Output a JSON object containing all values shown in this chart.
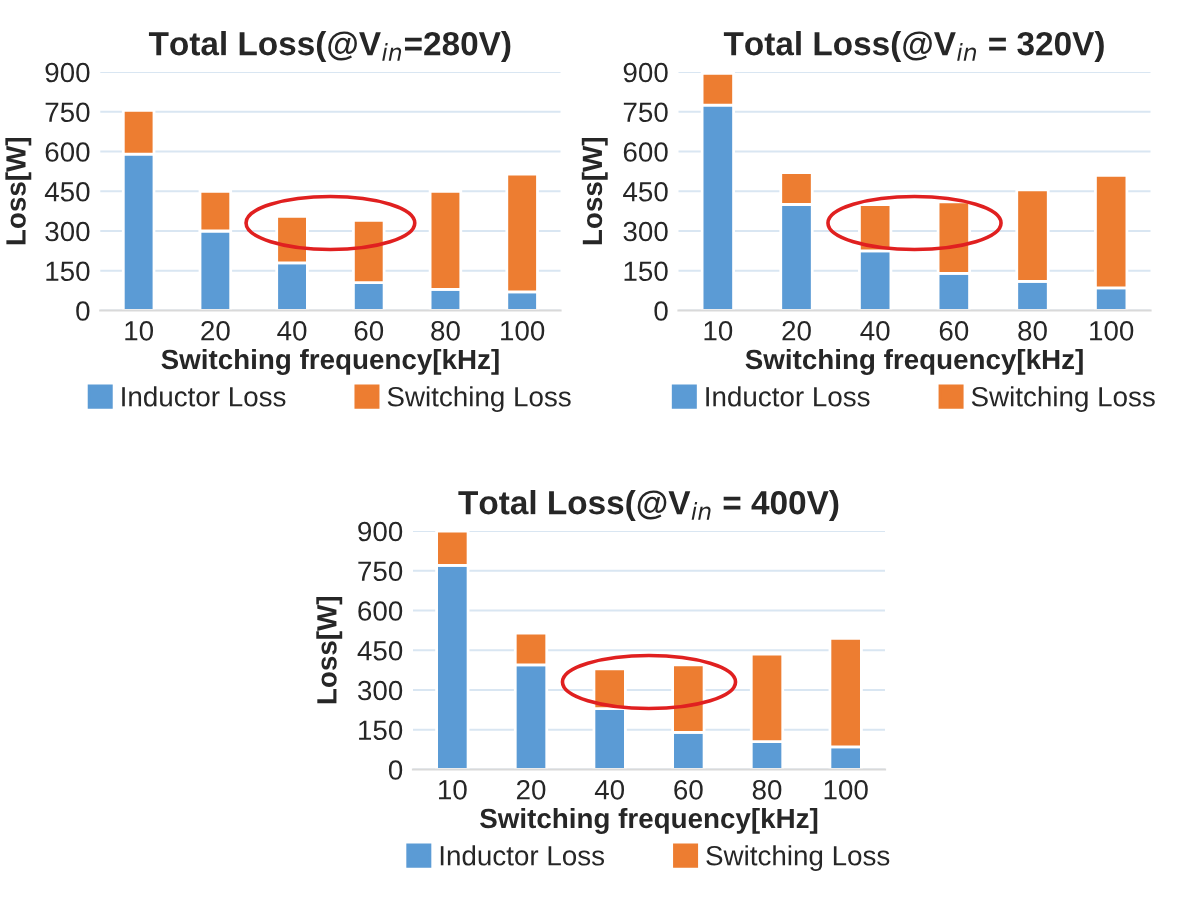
{
  "chart_data": [
    {
      "type": "bar",
      "title": "Total Loss(@V$_{in}$=280V)",
      "xlabel": "Switching frequency[kHz]",
      "ylabel": "Loss[W]",
      "categories": [
        "10",
        "20",
        "40",
        "60",
        "80",
        "100"
      ],
      "stacked": true,
      "ylim": [
        0,
        900
      ],
      "yticks": [
        0,
        150,
        300,
        450,
        600,
        750,
        900
      ],
      "grid": "y",
      "legend": "bottom",
      "series": [
        {
          "name": "Inductor Loss",
          "color": "#5b9bd5",
          "values": [
            590,
            300,
            180,
            105,
            80,
            70
          ]
        },
        {
          "name": "Switching Loss",
          "color": "#ed7d31",
          "values": [
            165,
            150,
            175,
            235,
            370,
            445
          ]
        }
      ]
    },
    {
      "type": "bar",
      "title": "Total Loss(@V$_{in}$ = 320V)",
      "xlabel": "Switching frequency[kHz]",
      "ylabel": "Loss[W]",
      "categories": [
        "10",
        "20",
        "40",
        "60",
        "80",
        "100"
      ],
      "stacked": true,
      "ylim": [
        0,
        900
      ],
      "yticks": [
        0,
        150,
        300,
        450,
        600,
        750,
        900
      ],
      "grid": "y",
      "legend": "bottom",
      "series": [
        {
          "name": "Inductor Loss",
          "color": "#5b9bd5",
          "values": [
            775,
            400,
            225,
            140,
            110,
            85
          ]
        },
        {
          "name": "Switching Loss",
          "color": "#ed7d31",
          "values": [
            120,
            120,
            175,
            270,
            345,
            425
          ]
        }
      ]
    },
    {
      "type": "bar",
      "title": "Total Loss(@V$_{in}$ = 400V)",
      "xlabel": "Switching frequency[kHz]",
      "ylabel": "Loss[W]",
      "categories": [
        "10",
        "20",
        "40",
        "60",
        "80",
        "100"
      ],
      "stacked": true,
      "ylim": [
        0,
        900
      ],
      "yticks": [
        0,
        150,
        300,
        450,
        600,
        750,
        900
      ],
      "grid": "y",
      "legend": "bottom",
      "series": [
        {
          "name": "Inductor Loss",
          "color": "#5b9bd5",
          "values": [
            770,
            395,
            230,
            140,
            105,
            85
          ]
        },
        {
          "name": "Switching Loss",
          "color": "#ed7d31",
          "values": [
            130,
            120,
            150,
            255,
            330,
            410
          ]
        }
      ]
    }
  ]
}
